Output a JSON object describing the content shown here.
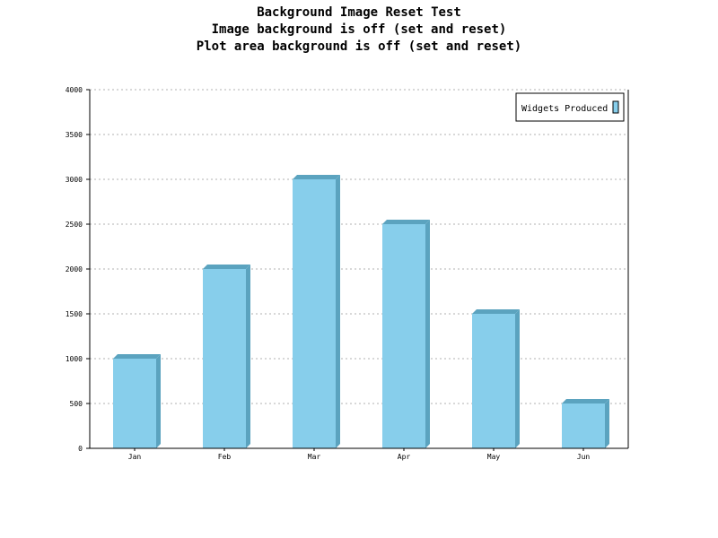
{
  "colors": {
    "bar_front": "#87CEEB",
    "bar_side": "#5BA3BF",
    "bar_top": "#5BA3BF"
  },
  "chart_data": {
    "type": "bar",
    "title": [
      "Background Image Reset Test",
      "Image background is off (set and reset)",
      "Plot area background is off (set and reset)"
    ],
    "categories": [
      "Jan",
      "Feb",
      "Mar",
      "Apr",
      "May",
      "Jun"
    ],
    "series": [
      {
        "name": "Widgets Produced",
        "values": [
          1000,
          2000,
          3000,
          2500,
          1500,
          500
        ]
      }
    ],
    "ylim": [
      0,
      4000
    ],
    "yticks": [
      "0",
      "500",
      "1000",
      "1500",
      "2000",
      "2500",
      "3000",
      "3500",
      "4000"
    ],
    "grid": true,
    "legend_position": "top-right"
  }
}
